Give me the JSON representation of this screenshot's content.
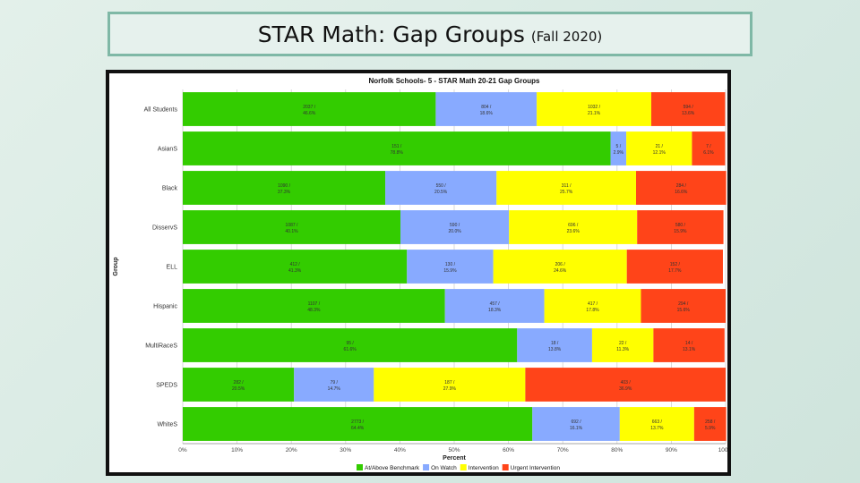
{
  "page": {
    "title_main": "STAR Math: Gap Groups",
    "title_sub": "(Fall 2020)"
  },
  "chart_data": {
    "type": "bar",
    "orientation": "horizontal",
    "stacked": true,
    "title": "Norfolk Schools- 5 - STAR Math 20-21 Gap Groups",
    "xlabel": "Percent",
    "ylabel": "Group",
    "xlim": [
      0,
      100
    ],
    "xticks": [
      "0%",
      "10%",
      "20%",
      "30%",
      "40%",
      "50%",
      "60%",
      "70%",
      "80%",
      "90%",
      "100%"
    ],
    "grid": true,
    "legend_position": "bottom",
    "categories": [
      "All Students",
      "AsianS",
      "Black",
      "DisservS",
      "ELL",
      "Hispanic",
      "MultiRaceS",
      "SPEDS",
      "WhiteS"
    ],
    "series": [
      {
        "name": "At/Above Benchmark",
        "color": "#33cc00",
        "values": [
          46.6,
          78.8,
          37.3,
          40.1,
          41.3,
          48.3,
          61.6,
          20.5,
          64.4
        ]
      },
      {
        "name": "On Watch",
        "color": "#88aaff",
        "values": [
          18.6,
          2.9,
          20.5,
          20.0,
          15.9,
          18.3,
          13.8,
          14.7,
          16.1
        ]
      },
      {
        "name": "Intervention",
        "color": "#ffff00",
        "values": [
          21.1,
          12.1,
          25.7,
          23.6,
          24.6,
          17.8,
          11.3,
          27.9,
          13.7
        ]
      },
      {
        "name": "Urgent Intervention",
        "color": "#ff4419",
        "values": [
          13.6,
          6.1,
          16.6,
          15.9,
          17.7,
          15.6,
          13.1,
          36.9,
          5.9
        ]
      }
    ],
    "counts": [
      [
        "2037",
        "804",
        "1032",
        "594"
      ],
      [
        "151",
        "5",
        "21",
        "7"
      ],
      [
        "1090",
        "550",
        "311",
        "284"
      ],
      [
        "1087",
        "590",
        "696",
        "580"
      ],
      [
        "412",
        "130",
        "206",
        "152"
      ],
      [
        "1107",
        "457",
        "417",
        "294"
      ],
      [
        "95",
        "18",
        "22",
        "14"
      ],
      [
        "282",
        "79",
        "187",
        "403"
      ],
      [
        "2773",
        "692",
        "663",
        "258"
      ]
    ]
  }
}
